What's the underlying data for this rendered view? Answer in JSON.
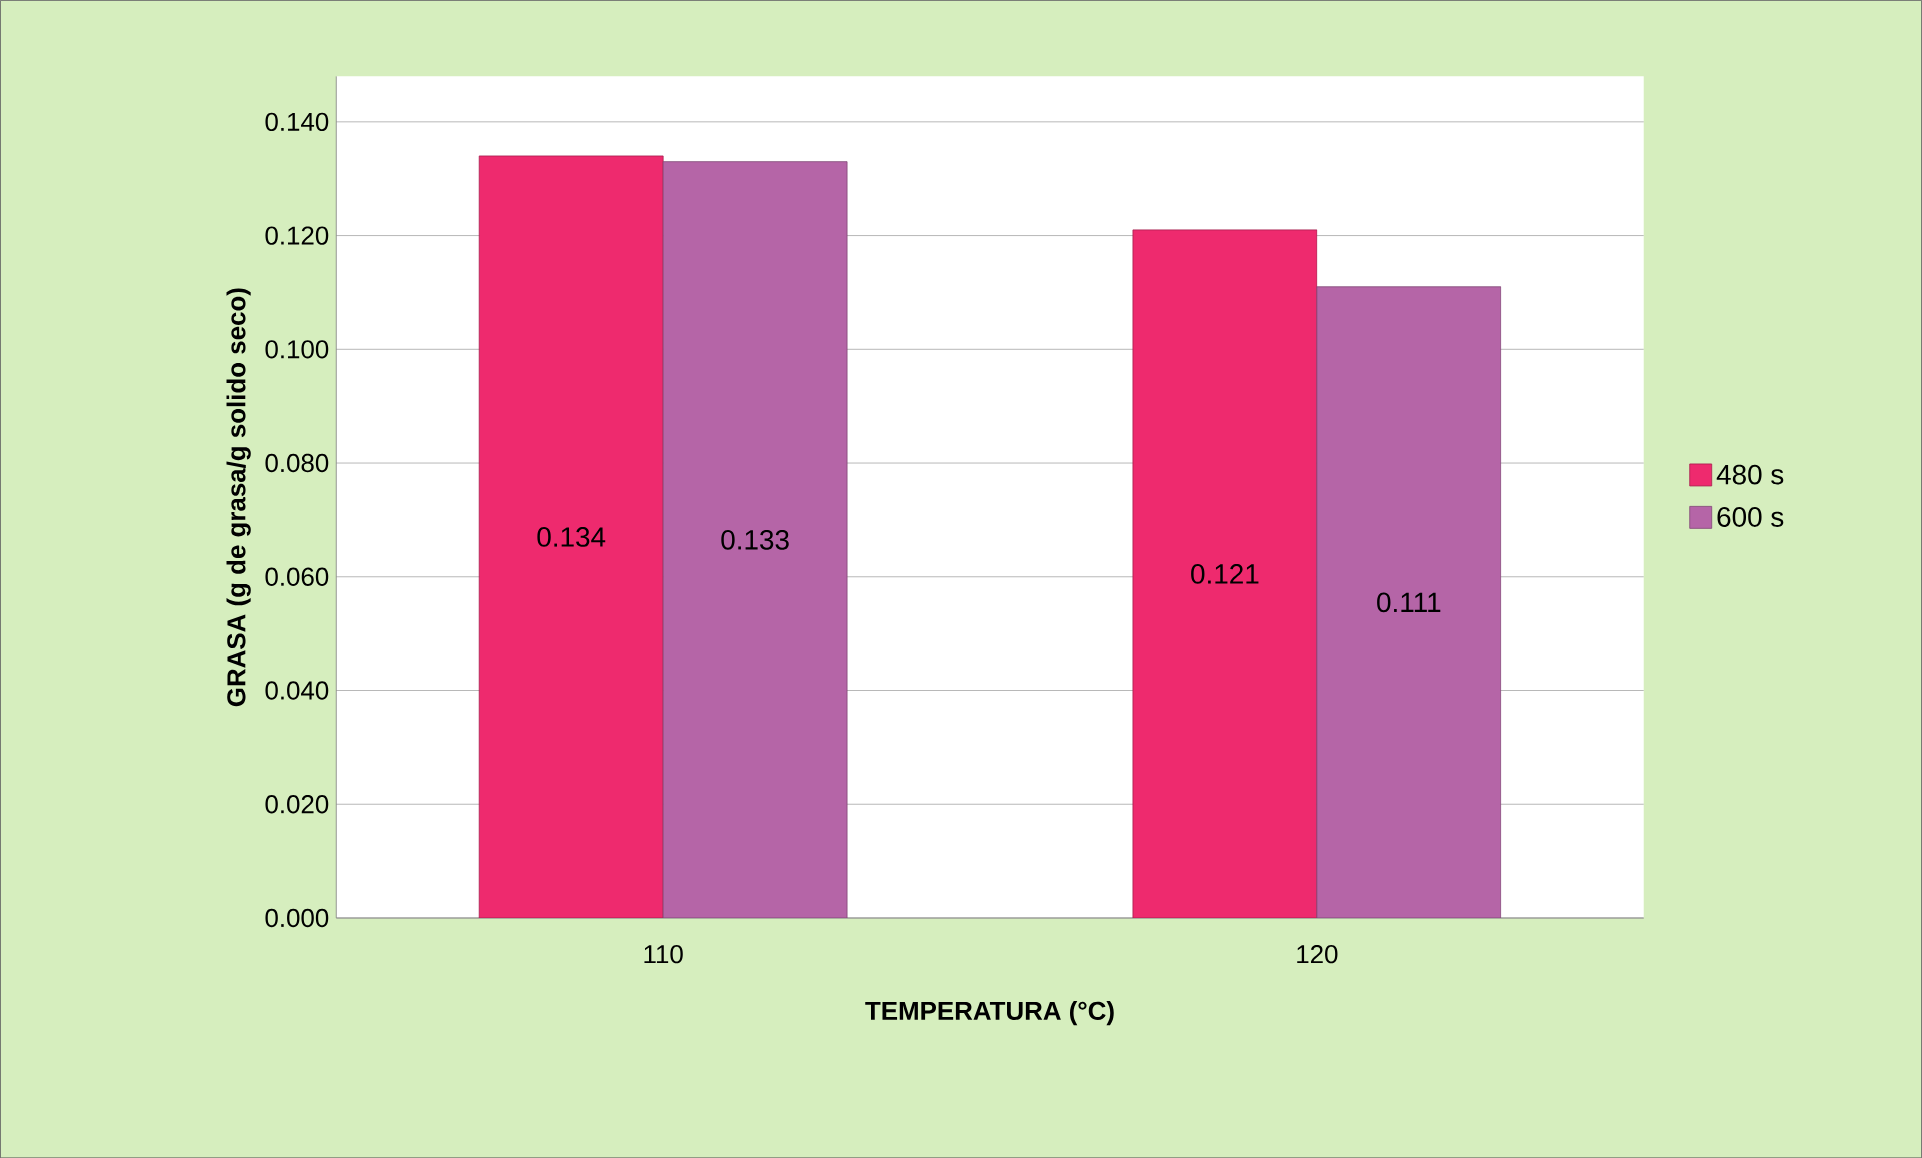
{
  "chart_data": {
    "type": "bar",
    "xlabel": "TEMPERATURA (°C)",
    "ylabel": "GRASA (g de grasa/g solido seco)",
    "categories": [
      "110",
      "120"
    ],
    "series": [
      {
        "name": "480 s",
        "color": "#ee2a6e",
        "values": [
          0.134,
          0.121
        ]
      },
      {
        "name": "600 s",
        "color": "#b565a7",
        "values": [
          0.133,
          0.111
        ]
      }
    ],
    "ylim": [
      0,
      0.148
    ],
    "yticks": [
      {
        "value": 0,
        "label": "0.000"
      },
      {
        "value": 0.02,
        "label": "0.020"
      },
      {
        "value": 0.04,
        "label": "0.040"
      },
      {
        "value": 0.06,
        "label": "0.060"
      },
      {
        "value": 0.08,
        "label": "0.080"
      },
      {
        "value": 0.1,
        "label": "0.100"
      },
      {
        "value": 0.12,
        "label": "0.120"
      },
      {
        "value": 0.14,
        "label": "0.140"
      }
    ],
    "grid": "y",
    "legend": "right",
    "data_labels": true
  }
}
